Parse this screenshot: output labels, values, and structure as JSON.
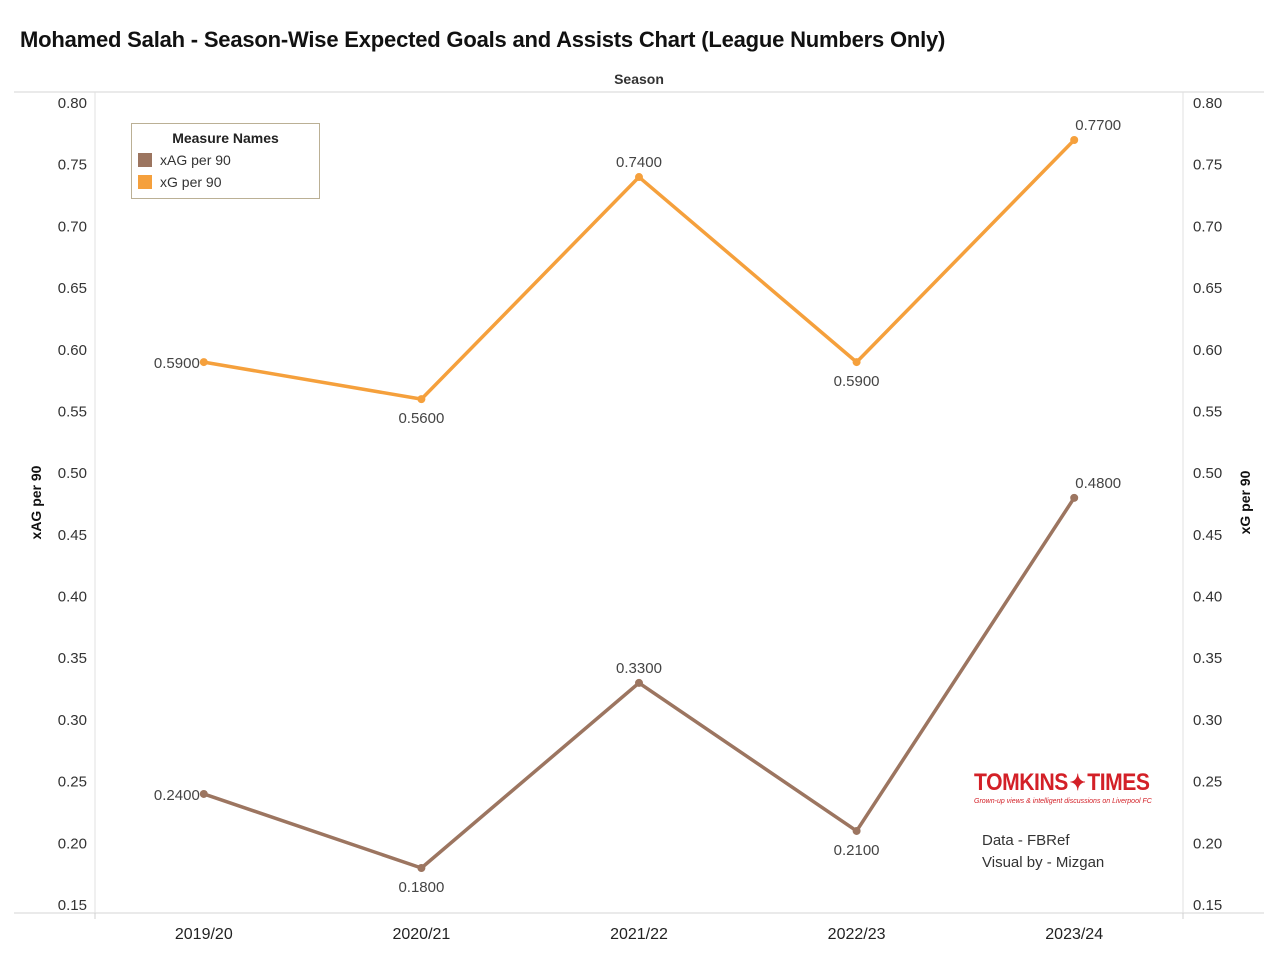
{
  "title": "Mohamed Salah - Season-Wise Expected Goals and Assists Chart (League Numbers Only)",
  "legend": {
    "title": "Measure Names",
    "items": [
      {
        "label": "xAG per 90",
        "color": "#9c7560"
      },
      {
        "label": "xG per 90",
        "color": "#f5a03c"
      }
    ]
  },
  "logo": {
    "brand_left": "TOMKINS",
    "brand_right": "TIMES",
    "tagline": "Grown-up views & intelligent discussions on Liverpool FC"
  },
  "credits": {
    "line1": "Data - FBRef",
    "line2": "Visual by - Mizgan"
  },
  "chart_data": {
    "type": "line",
    "title": "Mohamed Salah - Season-Wise Expected Goals and Assists Chart (League Numbers Only)",
    "column_title": "Season",
    "categories": [
      "2019/20",
      "2020/21",
      "2021/22",
      "2022/23",
      "2023/24"
    ],
    "ylabel_left": "xAG per 90",
    "ylabel_right": "xG per 90",
    "ylim": [
      0.15,
      0.8
    ],
    "yticks": [
      "0.80",
      "0.75",
      "0.70",
      "0.65",
      "0.60",
      "0.55",
      "0.50",
      "0.45",
      "0.40",
      "0.35",
      "0.30",
      "0.25",
      "0.20",
      "0.15"
    ],
    "series": [
      {
        "name": "xG per 90",
        "color": "#f5a03c",
        "values": [
          0.59,
          0.56,
          0.74,
          0.59,
          0.77
        ],
        "labels": [
          "0.5900",
          "0.5600",
          "0.7400",
          "0.5900",
          "0.7700"
        ]
      },
      {
        "name": "xAG per 90",
        "color": "#9c7560",
        "values": [
          0.24,
          0.18,
          0.33,
          0.21,
          0.48
        ],
        "labels": [
          "0.2400",
          "0.1800",
          "0.3300",
          "0.2100",
          "0.4800"
        ]
      }
    ],
    "grid": false,
    "legend_position": "top-left"
  }
}
